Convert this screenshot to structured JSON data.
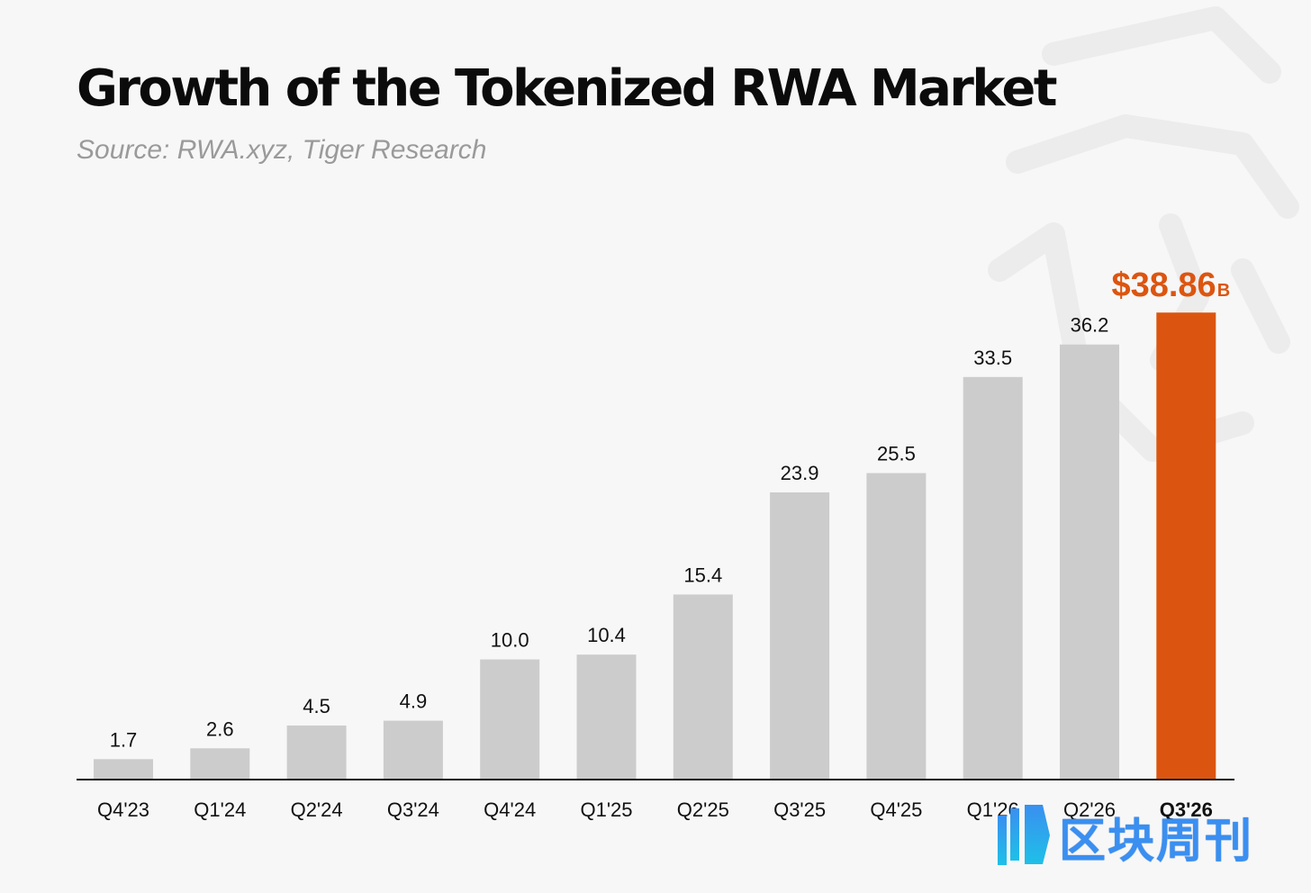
{
  "header": {
    "title": "Growth of the Tokenized RWA Market",
    "subtitle": "Source: RWA.xyz, Tiger Research"
  },
  "chart_data": {
    "type": "bar",
    "categories": [
      "Q4'23",
      "Q1'24",
      "Q2'24",
      "Q3'24",
      "Q4'24",
      "Q1'25",
      "Q2'25",
      "Q3'25",
      "Q4'25",
      "Q1'26",
      "Q2'26",
      "Q3'26"
    ],
    "values": [
      1.7,
      2.6,
      4.5,
      4.9,
      10.0,
      10.4,
      15.4,
      23.9,
      25.5,
      33.5,
      36.2,
      38.86
    ],
    "value_labels": [
      "1.7",
      "2.6",
      "4.5",
      "4.9",
      "10.0",
      "10.4",
      "15.4",
      "23.9",
      "25.5",
      "33.5",
      "36.2",
      "$38.86"
    ],
    "highlight_index": 11,
    "highlight_unit": "B",
    "ylim": [
      0,
      40
    ],
    "grid": false,
    "colors": {
      "bar": "#cccccc",
      "highlight": "#dc5510",
      "label": "#111111",
      "axis": "#111111"
    }
  },
  "watermark": {
    "text": "区块周刊",
    "colors": [
      "#3a8ff0",
      "#1ec0e8"
    ]
  }
}
